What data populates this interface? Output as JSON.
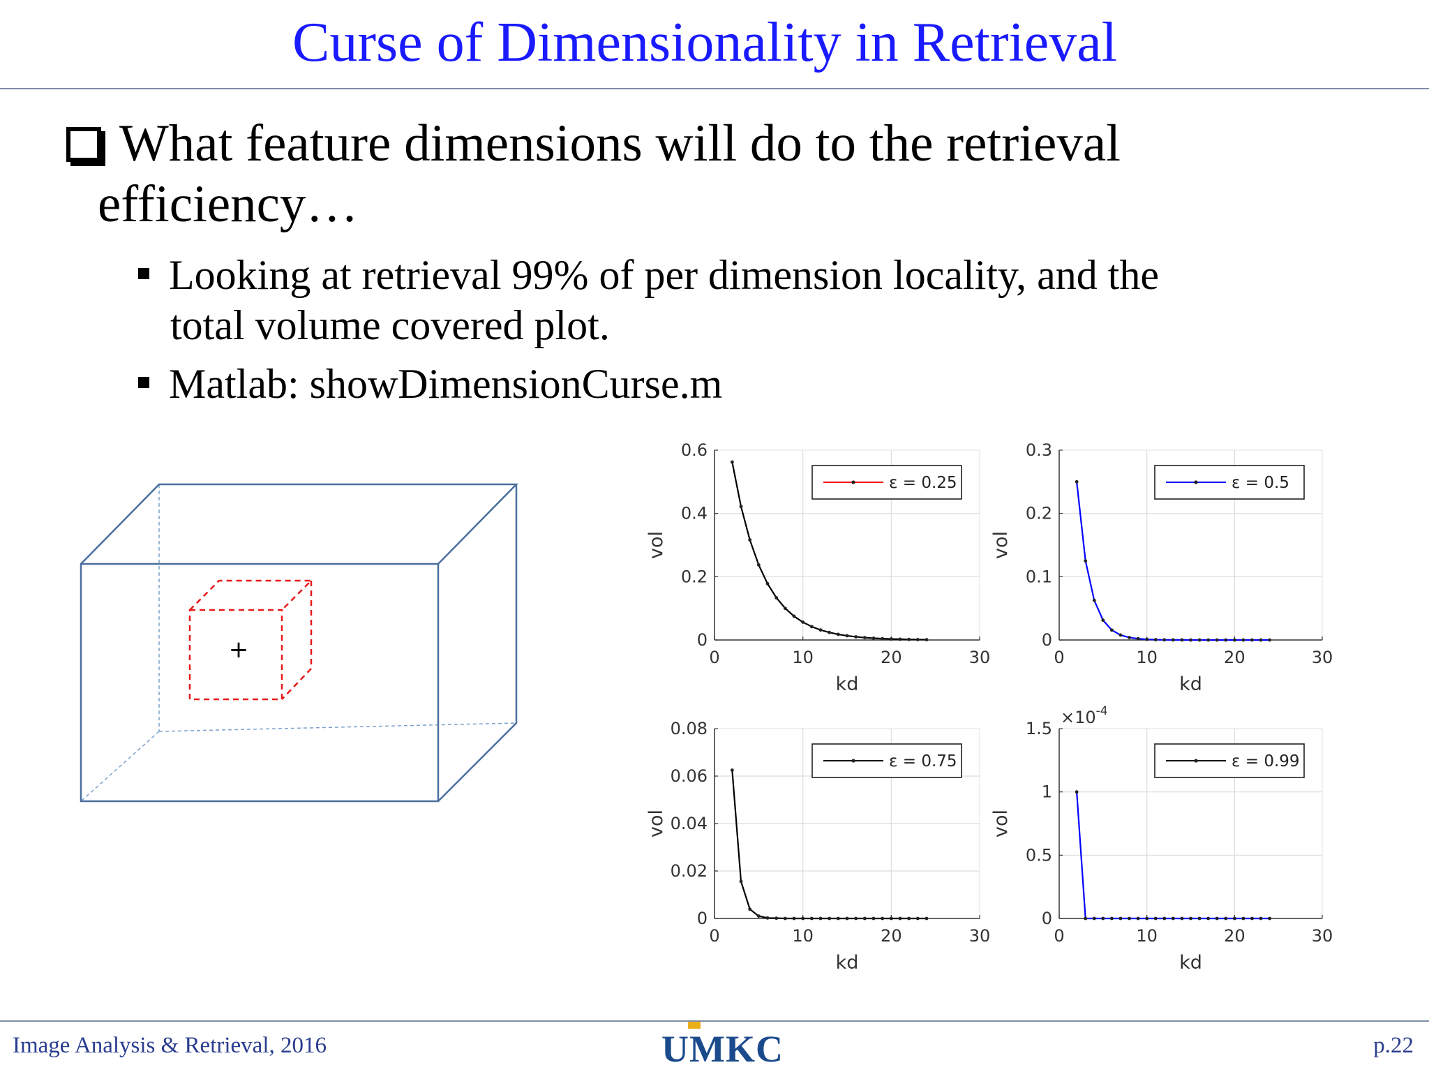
{
  "slide": {
    "title": "Curse of Dimensionality in Retrieval",
    "bullet_line1": "What feature dimensions will do to the retrieval",
    "bullet_line2": "efficiency…",
    "sub1_line1": "Looking at retrieval 99% of per dimension locality, and the",
    "sub1_line2": "total volume covered plot.",
    "sub2": "Matlab: showDimensionCurse.m",
    "cube_marker": "+"
  },
  "footer": {
    "left": "Image Analysis  & Retrieval, 2016",
    "logo": "UMKC",
    "page": "p.22"
  },
  "colors": {
    "title": "#1a1aff",
    "cube_outer": "#4a6f9e",
    "cube_inner": "#e8191a",
    "footer": "#2a3d8f"
  },
  "chart_data": [
    {
      "type": "line",
      "legend": "ε = 0.25",
      "legend_placement": "top-right",
      "line_color": "#000000",
      "legend_line_color": "#ff0000",
      "xlabel": "kd",
      "ylabel": "vol",
      "xlim": [
        0,
        30
      ],
      "ylim": [
        0,
        0.6
      ],
      "xticks": [
        "0",
        "10",
        "20",
        "30"
      ],
      "yticks": [
        "0",
        "0.2",
        "0.4",
        "0.6"
      ],
      "grid": true,
      "x": [
        2,
        3,
        4,
        5,
        6,
        7,
        8,
        9,
        10,
        11,
        12,
        13,
        14,
        15,
        16,
        17,
        18,
        19,
        20,
        21,
        22,
        23,
        24
      ],
      "y": [
        0.5625,
        0.4219,
        0.3164,
        0.2373,
        0.178,
        0.1335,
        0.1001,
        0.0751,
        0.0563,
        0.0422,
        0.0317,
        0.0238,
        0.0178,
        0.0134,
        0.01,
        0.0075,
        0.0056,
        0.0042,
        0.0032,
        0.0024,
        0.0018,
        0.0013,
        0.001
      ]
    },
    {
      "type": "line",
      "legend": "ε = 0.5",
      "legend_placement": "top-right",
      "line_color": "#0000ff",
      "legend_line_color": "#0000ff",
      "xlabel": "kd",
      "ylabel": "vol",
      "xlim": [
        0,
        30
      ],
      "ylim": [
        0,
        0.3
      ],
      "xticks": [
        "0",
        "10",
        "20",
        "30"
      ],
      "yticks": [
        "0",
        "0.1",
        "0.2",
        "0.3"
      ],
      "grid": true,
      "x": [
        2,
        3,
        4,
        5,
        6,
        7,
        8,
        9,
        10,
        11,
        12,
        13,
        14,
        15,
        16,
        17,
        18,
        19,
        20,
        21,
        22,
        23,
        24
      ],
      "y": [
        0.25,
        0.125,
        0.0625,
        0.0313,
        0.0156,
        0.0078,
        0.0039,
        0.002,
        0.001,
        0.0005,
        0.0002,
        0.0001,
        0.0001,
        0,
        0,
        0,
        0,
        0,
        0,
        0,
        0,
        0,
        0
      ]
    },
    {
      "type": "line",
      "legend": "ε = 0.75",
      "legend_placement": "top-right",
      "line_color": "#000000",
      "legend_line_color": "#000000",
      "xlabel": "kd",
      "ylabel": "vol",
      "xlim": [
        0,
        30
      ],
      "ylim": [
        0,
        0.08
      ],
      "xticks": [
        "0",
        "10",
        "20",
        "30"
      ],
      "yticks": [
        "0",
        "0.02",
        "0.04",
        "0.06",
        "0.08"
      ],
      "grid": true,
      "x": [
        2,
        3,
        4,
        5,
        6,
        7,
        8,
        9,
        10,
        11,
        12,
        13,
        14,
        15,
        16,
        17,
        18,
        19,
        20,
        21,
        22,
        23,
        24
      ],
      "y": [
        0.0625,
        0.0156,
        0.0039,
        0.001,
        0.0002,
        0.0001,
        0,
        0,
        0,
        0,
        0,
        0,
        0,
        0,
        0,
        0,
        0,
        0,
        0,
        0,
        0,
        0,
        0
      ]
    },
    {
      "type": "line",
      "legend": "ε = 0.99",
      "legend_placement": "top-right",
      "line_color": "#0000ff",
      "legend_line_color": "#000000",
      "xlabel": "kd",
      "ylabel": "vol",
      "xlim": [
        0,
        30
      ],
      "ylim": [
        0,
        1.5
      ],
      "y_multiplier": "×10^-4",
      "xticks": [
        "0",
        "10",
        "20",
        "30"
      ],
      "yticks": [
        "0",
        "0.5",
        "1",
        "1.5"
      ],
      "grid": true,
      "x": [
        2,
        3,
        4,
        5,
        6,
        7,
        8,
        9,
        10,
        11,
        12,
        13,
        14,
        15,
        16,
        17,
        18,
        19,
        20,
        21,
        22,
        23,
        24
      ],
      "y": [
        1,
        0,
        0,
        0,
        0,
        0,
        0,
        0,
        0,
        0,
        0,
        0,
        0,
        0,
        0,
        0,
        0,
        0,
        0,
        0,
        0,
        0,
        0
      ]
    }
  ]
}
